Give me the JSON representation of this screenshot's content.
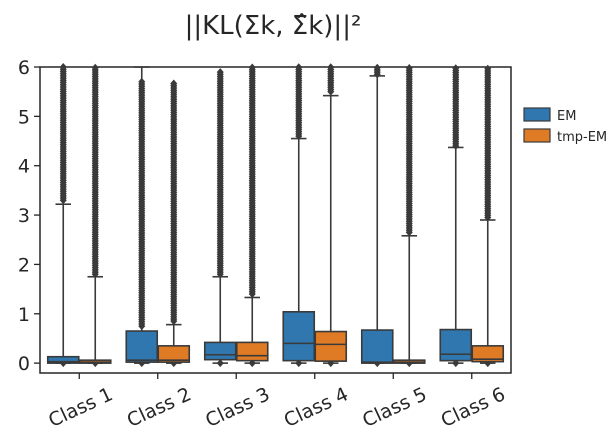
{
  "chart_data": {
    "type": "boxplot",
    "title": "||KL(Σk, Σ̂k)||²",
    "xlabel": "",
    "ylabel": "",
    "ylim": [
      -0.2,
      6
    ],
    "yticks": [
      0,
      1,
      2,
      3,
      4,
      5,
      6
    ],
    "categories": [
      "Class 1",
      "Class 2",
      "Class 3",
      "Class 4",
      "Class 5",
      "Class 6"
    ],
    "legend_position": "right",
    "series": [
      {
        "name": "EM",
        "color": "#2f77ae",
        "boxes": [
          {
            "whislo": 0,
            "q1": 0.0,
            "med": 0.03,
            "q3": 0.13,
            "whishi": 3.22
          },
          {
            "whislo": 0,
            "q1": 0.02,
            "med": 0.06,
            "q3": 0.65,
            "whishi": 6.0
          },
          {
            "whislo": 0,
            "q1": 0.07,
            "med": 0.17,
            "q3": 0.42,
            "whishi": 1.75
          },
          {
            "whislo": 0,
            "q1": 0.05,
            "med": 0.4,
            "q3": 1.04,
            "whishi": 4.55
          },
          {
            "whislo": 0,
            "q1": 0.0,
            "med": 0.02,
            "q3": 0.67,
            "whishi": 5.82
          },
          {
            "whislo": 0,
            "q1": 0.05,
            "med": 0.18,
            "q3": 0.68,
            "whishi": 4.37
          }
        ],
        "outliers": [
          {
            "from": 3.3,
            "to": 6.0
          },
          {
            "from": 0.75,
            "to": 5.7
          },
          {
            "from": 1.8,
            "to": 5.9
          },
          {
            "from": 4.6,
            "to": 6.0
          },
          {
            "from": 5.85,
            "to": 6.0
          },
          {
            "from": 4.4,
            "to": 6.0
          }
        ]
      },
      {
        "name": "tmp-EM",
        "color": "#e07b25",
        "boxes": [
          {
            "whislo": 0,
            "q1": 0.0,
            "med": 0.02,
            "q3": 0.06,
            "whishi": 1.75
          },
          {
            "whislo": 0,
            "q1": 0.02,
            "med": 0.06,
            "q3": 0.35,
            "whishi": 0.78
          },
          {
            "whislo": 0,
            "q1": 0.05,
            "med": 0.15,
            "q3": 0.42,
            "whishi": 1.33
          },
          {
            "whislo": 0,
            "q1": 0.04,
            "med": 0.38,
            "q3": 0.64,
            "whishi": 5.42
          },
          {
            "whislo": 0,
            "q1": 0.0,
            "med": 0.02,
            "q3": 0.06,
            "whishi": 2.58
          },
          {
            "whislo": 0,
            "q1": 0.03,
            "med": 0.08,
            "q3": 0.35,
            "whishi": 2.9
          }
        ],
        "outliers": [
          {
            "from": 1.8,
            "to": 6.0
          },
          {
            "from": 0.85,
            "to": 5.7
          },
          {
            "from": 1.4,
            "to": 6.0
          },
          {
            "from": 5.5,
            "to": 6.0
          },
          {
            "from": 2.65,
            "to": 6.0
          },
          {
            "from": 2.95,
            "to": 6.0
          }
        ]
      }
    ]
  }
}
